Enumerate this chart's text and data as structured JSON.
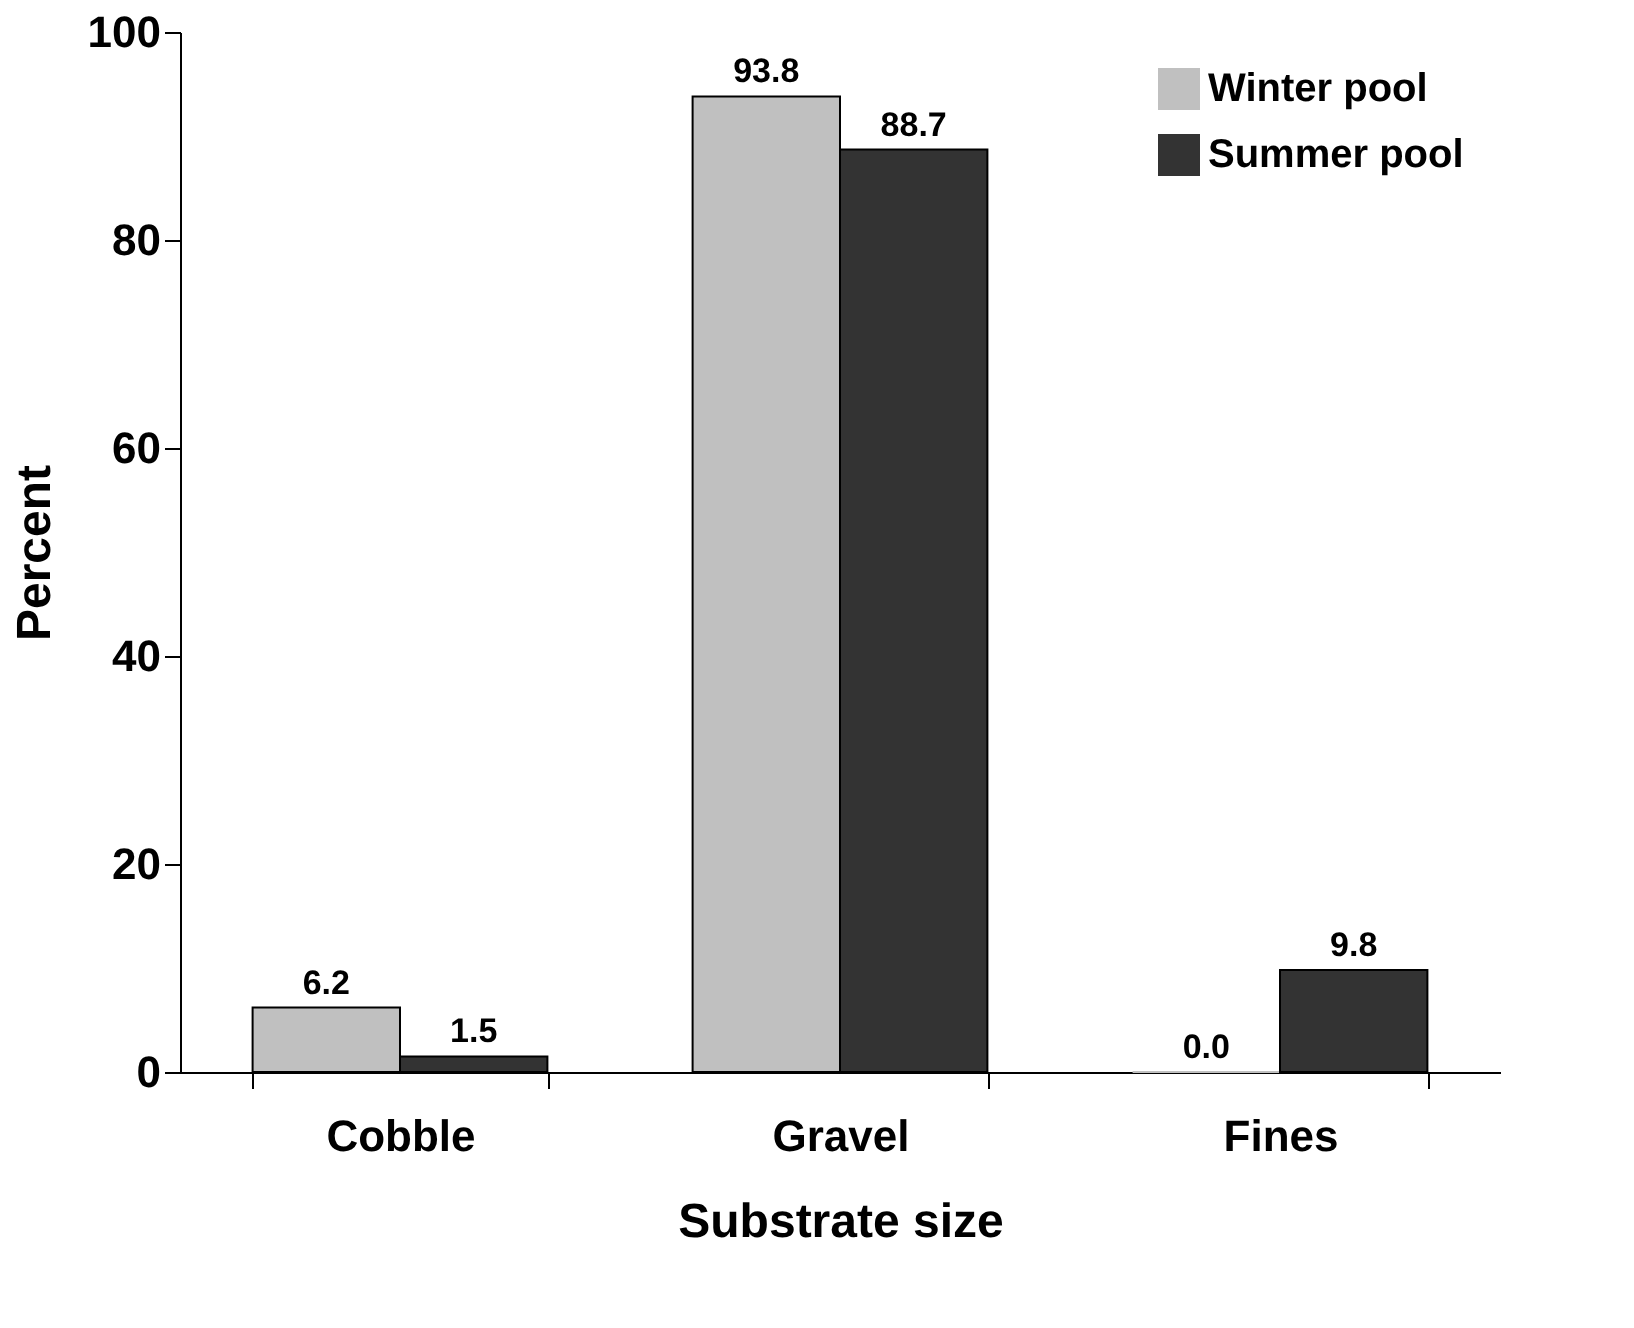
{
  "chart_data": {
    "type": "bar",
    "xlabel": "Substrate size",
    "ylabel": "Percent",
    "categories": [
      "Cobble",
      "Gravel",
      "Fines"
    ],
    "series": [
      {
        "name": "Winter pool",
        "color": "#c0c0c0",
        "values": [
          6.2,
          93.8,
          0.0
        ],
        "value_labels": [
          "6.2",
          "93.8",
          "0.0"
        ]
      },
      {
        "name": "Summer pool",
        "color": "#333333",
        "values": [
          1.5,
          88.7,
          9.8
        ],
        "value_labels": [
          "1.5",
          "88.7",
          "9.8"
        ]
      }
    ],
    "ylim": [
      0,
      100
    ],
    "yticks": [
      0,
      20,
      40,
      60,
      80,
      100
    ],
    "grid": false,
    "legend": "top right"
  }
}
